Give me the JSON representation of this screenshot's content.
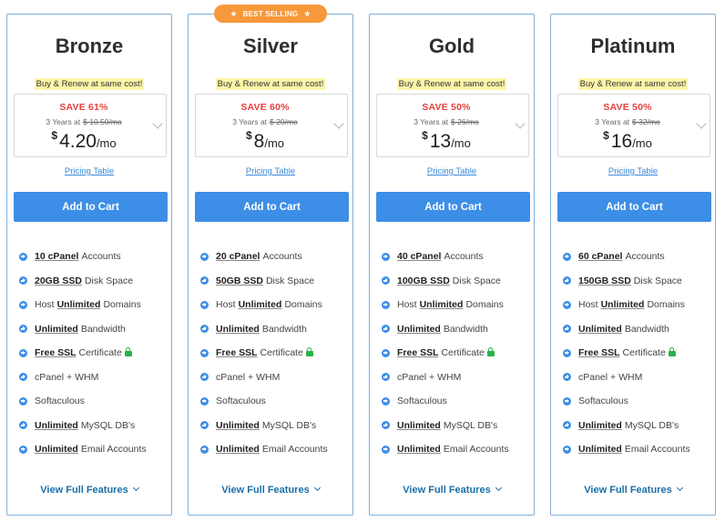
{
  "plans": [
    {
      "name": "Bronze",
      "badge": "",
      "promo": "Buy & Renew at same cost!",
      "save": "SAVE 61%",
      "term": "3 Years at",
      "old_price": "$ 10.50/mo",
      "currency": "$",
      "price": "4.20",
      "per": "/mo",
      "pricing_table": "Pricing Table",
      "cart": "Add to Cart",
      "features": [
        {
          "bold": "10 cPanel",
          "text": "Accounts"
        },
        {
          "bold": "20GB SSD",
          "text": "Disk Space"
        },
        {
          "pre": "Host",
          "bold": "Unlimited",
          "text": "Domains"
        },
        {
          "bold": "Unlimited",
          "text": "Bandwidth"
        },
        {
          "bold": "Free SSL",
          "text": "Certificate",
          "icon": "lock-icon"
        },
        {
          "text": "cPanel + WHM"
        },
        {
          "text": "Softaculous"
        },
        {
          "bold": "Unlimited",
          "text": "MySQL DB's"
        },
        {
          "bold": "Unlimited",
          "text": "Email Accounts"
        }
      ],
      "view_full": "View Full Features"
    },
    {
      "name": "Silver",
      "badge": "BEST SELLING",
      "promo": "Buy & Renew at same cost!",
      "save": "SAVE 60%",
      "term": "3 Years at",
      "old_price": "$ 20/mo",
      "currency": "$",
      "price": "8",
      "per": "/mo",
      "pricing_table": "Pricing Table",
      "cart": "Add to Cart",
      "features": [
        {
          "bold": "20 cPanel",
          "text": "Accounts"
        },
        {
          "bold": "50GB SSD",
          "text": "Disk Space"
        },
        {
          "pre": "Host",
          "bold": "Unlimited",
          "text": "Domains"
        },
        {
          "bold": "Unlimited",
          "text": "Bandwidth"
        },
        {
          "bold": "Free SSL",
          "text": "Certificate",
          "icon": "lock-icon"
        },
        {
          "text": "cPanel + WHM"
        },
        {
          "text": "Softaculous"
        },
        {
          "bold": "Unlimited",
          "text": "MySQL DB's"
        },
        {
          "bold": "Unlimited",
          "text": "Email Accounts"
        }
      ],
      "view_full": "View Full Features"
    },
    {
      "name": "Gold",
      "badge": "",
      "promo": "Buy & Renew at same cost!",
      "save": "SAVE 50%",
      "term": "3 Years at",
      "old_price": "$ 26/mo",
      "currency": "$",
      "price": "13",
      "per": "/mo",
      "pricing_table": "Pricing Table",
      "cart": "Add to Cart",
      "features": [
        {
          "bold": "40 cPanel",
          "text": "Accounts"
        },
        {
          "bold": "100GB SSD",
          "text": "Disk Space"
        },
        {
          "pre": "Host",
          "bold": "Unlimited",
          "text": "Domains"
        },
        {
          "bold": "Unlimited",
          "text": "Bandwidth"
        },
        {
          "bold": "Free SSL",
          "text": "Certificate",
          "icon": "lock-icon"
        },
        {
          "text": "cPanel + WHM"
        },
        {
          "text": "Softaculous"
        },
        {
          "bold": "Unlimited",
          "text": "MySQL DB's"
        },
        {
          "bold": "Unlimited",
          "text": "Email Accounts"
        }
      ],
      "view_full": "View Full Features"
    },
    {
      "name": "Platinum",
      "badge": "",
      "promo": "Buy & Renew at same cost!",
      "save": "SAVE 50%",
      "term": "3 Years at",
      "old_price": "$ 32/mo",
      "currency": "$",
      "price": "16",
      "per": "/mo",
      "pricing_table": "Pricing Table",
      "cart": "Add to Cart",
      "features": [
        {
          "bold": "60 cPanel",
          "text": "Accounts"
        },
        {
          "bold": "150GB SSD",
          "text": "Disk Space"
        },
        {
          "pre": "Host",
          "bold": "Unlimited",
          "text": "Domains"
        },
        {
          "bold": "Unlimited",
          "text": "Bandwidth"
        },
        {
          "bold": "Free SSL",
          "text": "Certificate",
          "icon": "lock-icon"
        },
        {
          "text": "cPanel + WHM"
        },
        {
          "text": "Softaculous"
        },
        {
          "bold": "Unlimited",
          "text": "MySQL DB's"
        },
        {
          "bold": "Unlimited",
          "text": "Email Accounts"
        }
      ],
      "view_full": "View Full Features"
    }
  ],
  "icons": {
    "badge_star": "star-icon",
    "feature_bullet": "arrow-circle-icon",
    "price_dropdown": "chevron-down-icon",
    "ssl": "lock-icon"
  },
  "colors": {
    "accent": "#3d8ee6",
    "save": "#e84040",
    "badge": "#f7983a",
    "promo_highlight": "#fdf5a8",
    "lock": "#2bb24c",
    "link": "#1a6fa8"
  }
}
